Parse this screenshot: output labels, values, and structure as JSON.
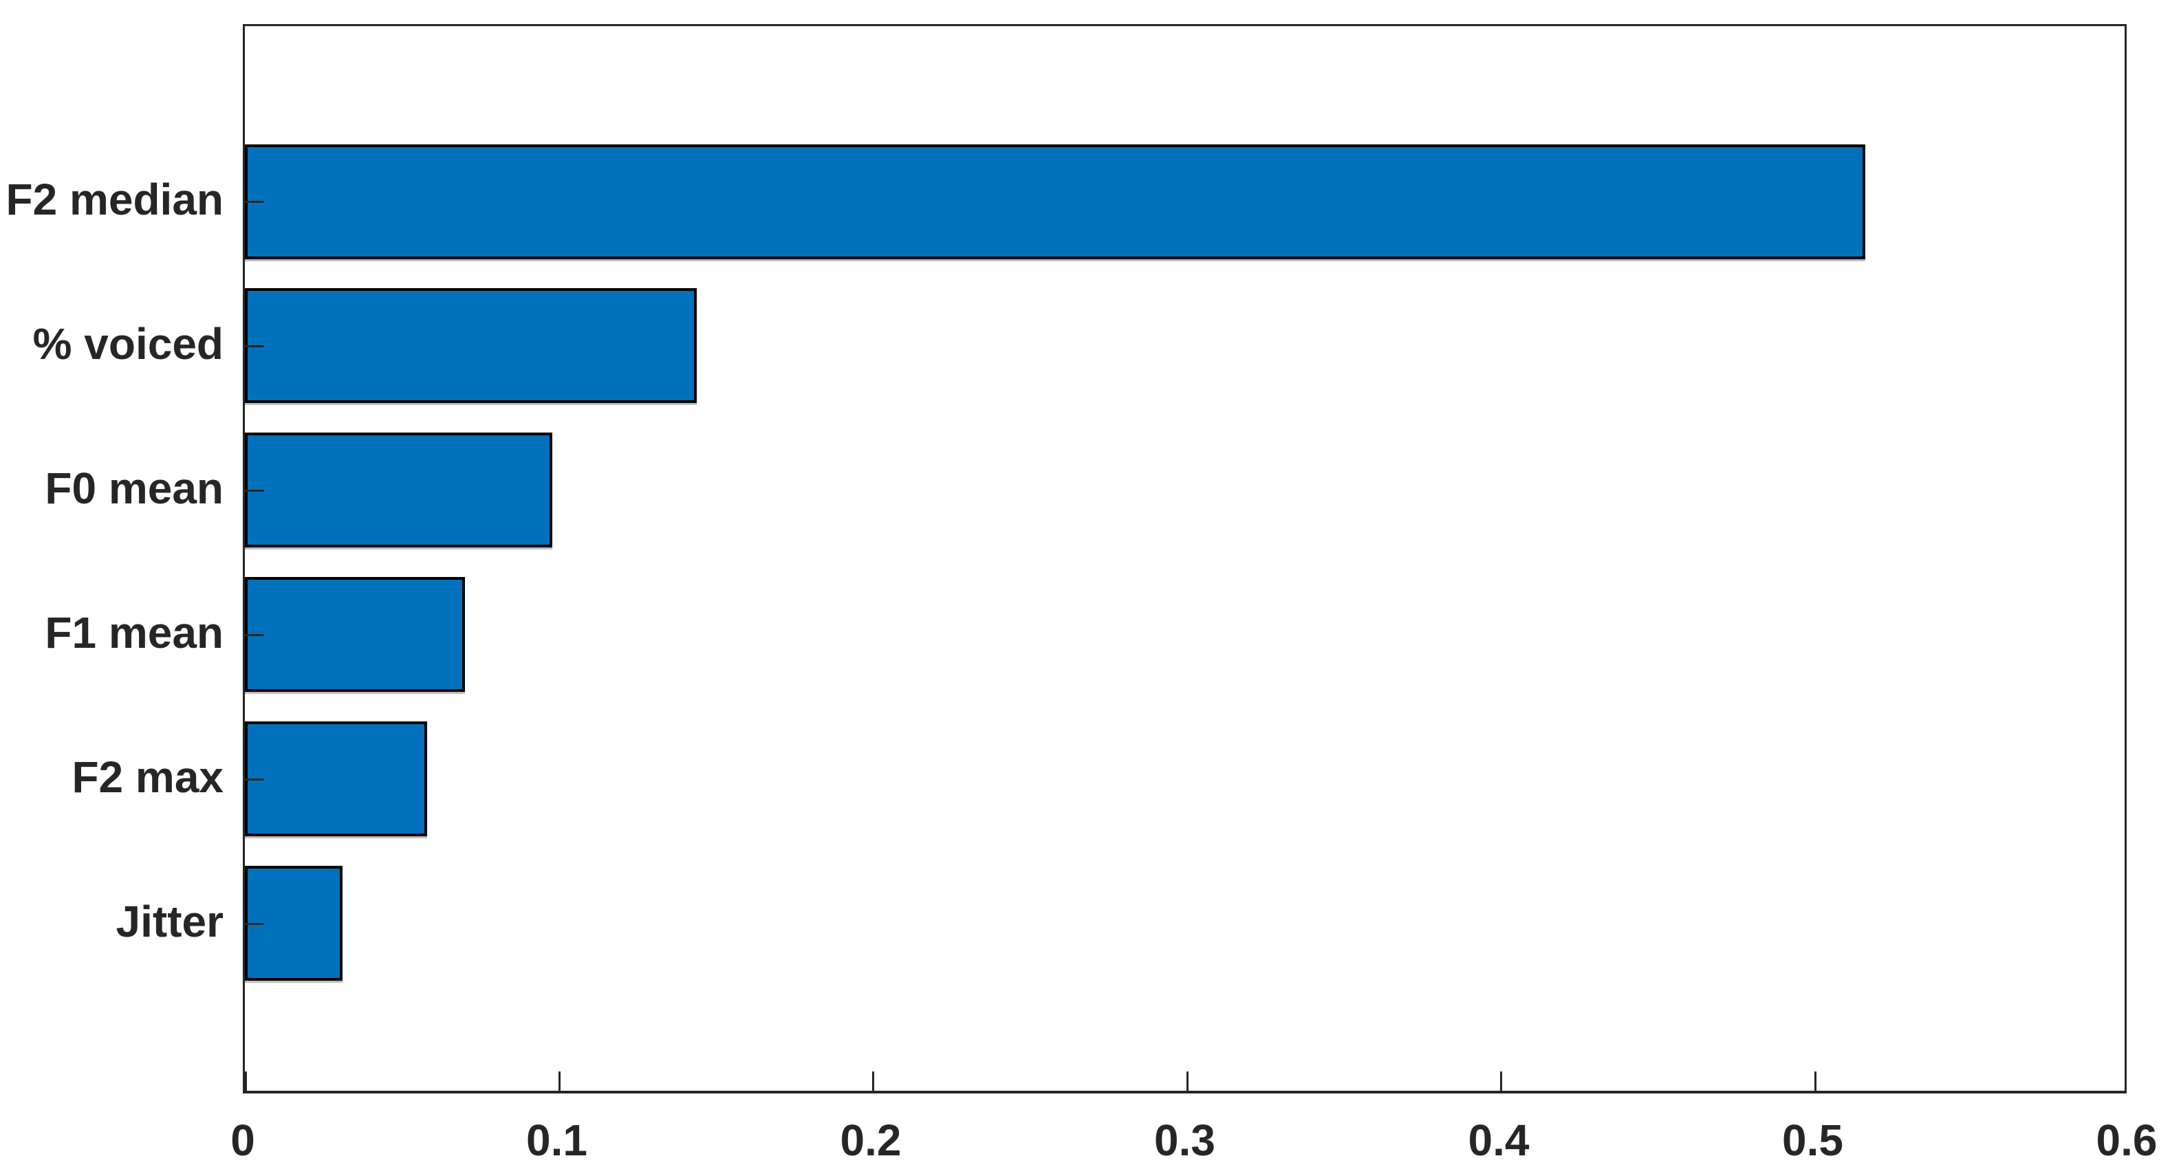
{
  "chart_data": {
    "type": "bar",
    "orientation": "horizontal",
    "title": "",
    "xlabel": "",
    "ylabel": "",
    "categories": [
      "F2 median",
      "% voiced",
      "F0 mean",
      "F1 mean",
      "F2 max",
      "Jitter"
    ],
    "values": [
      0.516,
      0.144,
      0.098,
      0.07,
      0.058,
      0.031
    ],
    "xlim": [
      0,
      0.6
    ],
    "xticks": [
      0,
      0.1,
      0.2,
      0.3,
      0.4,
      0.5,
      0.6
    ],
    "xtick_labels": [
      "0",
      "0.1",
      "0.2",
      "0.3",
      "0.4",
      "0.5",
      "0.6"
    ],
    "grid": false,
    "legend": null,
    "bar_color": "#0072BD",
    "bar_edge_color": "#000000",
    "axis_color": "#262626",
    "tick_label_color": "#262626",
    "background_color": "#ffffff"
  }
}
